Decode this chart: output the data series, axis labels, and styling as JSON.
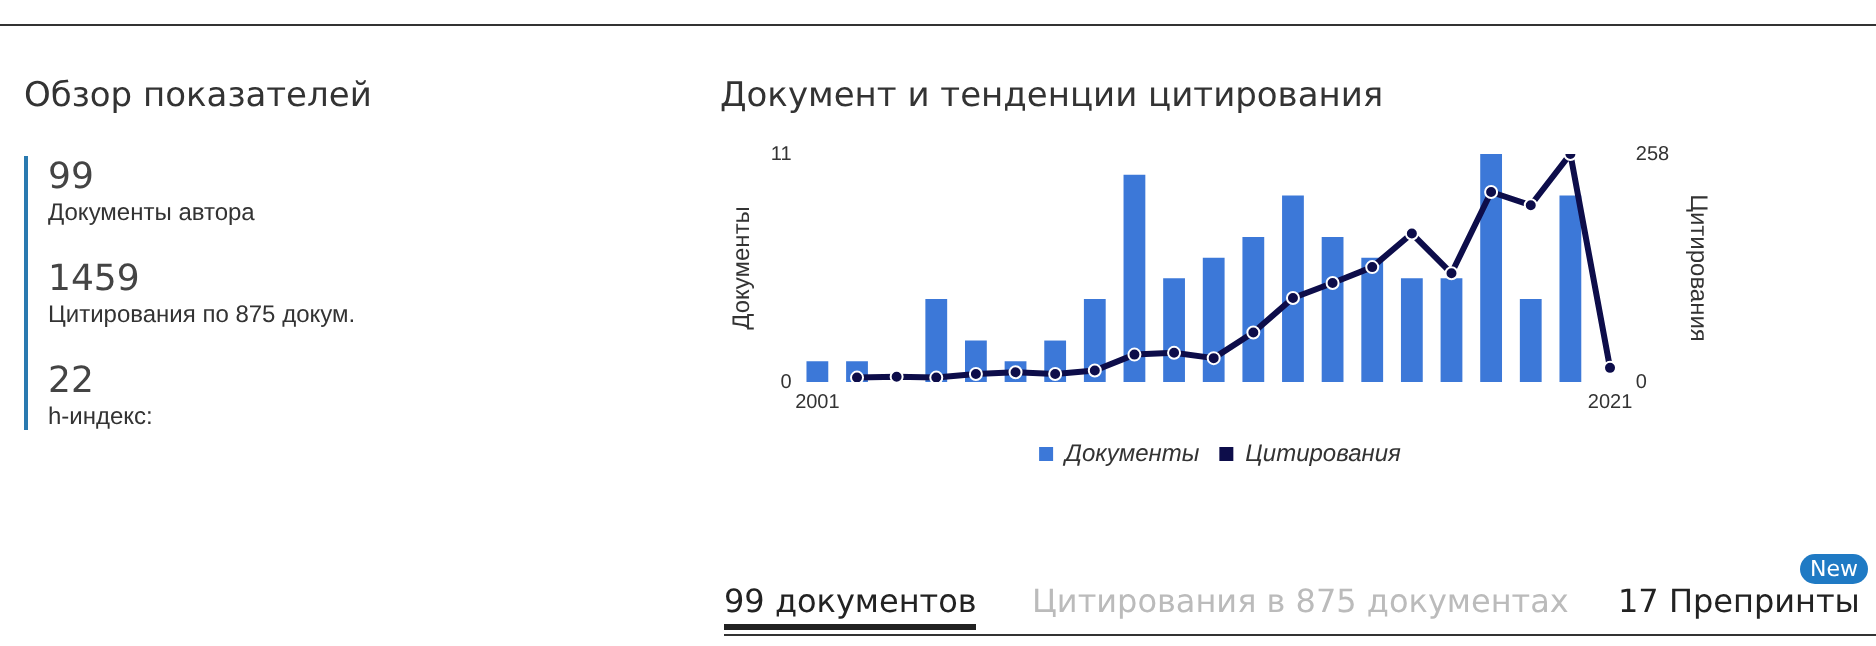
{
  "chart_data": [
    {
      "type": "other",
      "title": "Обзор показателей",
      "annotations": [
        "99",
        "Документы автора",
        "1459",
        "Цитирования по 875 докум.",
        "22",
        "h-индекс:"
      ]
    },
    {
      "type": "bar",
      "title": "Документ и тенденции цитирования",
      "ylabel": "Документы",
      "y2label": "Цитирования",
      "categories": [
        "2001",
        null,
        null,
        null,
        null,
        null,
        null,
        null,
        null,
        null,
        null,
        null,
        null,
        null,
        null,
        null,
        null,
        null,
        null,
        null,
        "2021"
      ],
      "series": [
        {
          "name": "Документы",
          "type": "bar",
          "color": "#3c78d8",
          "values": [
            1,
            1,
            0,
            4,
            2,
            1,
            2,
            4,
            10,
            5,
            6,
            7,
            9,
            7,
            6,
            5,
            5,
            11,
            4,
            9,
            0
          ]
        },
        {
          "name": "Цитирования",
          "type": "line",
          "axis": "y2",
          "color": "#0d0d4a",
          "values": [
            null,
            5,
            6,
            5,
            9,
            11,
            9,
            13,
            31,
            33,
            27,
            56,
            95,
            112,
            130,
            168,
            123,
            215,
            200,
            258,
            16
          ]
        }
      ],
      "ylim": [
        0,
        11
      ],
      "yticks": [
        0,
        11
      ],
      "y2lim": [
        0,
        258
      ],
      "y2ticks": [
        0,
        258
      ],
      "grid": false,
      "legend": "bottom",
      "marker": "circle",
      "line_style": "solid"
    },
    {
      "type": "other",
      "annotations": [
        "99 документов",
        "Цитирования в 875 документах",
        "17 Препринты",
        "New"
      ]
    }
  ]
}
